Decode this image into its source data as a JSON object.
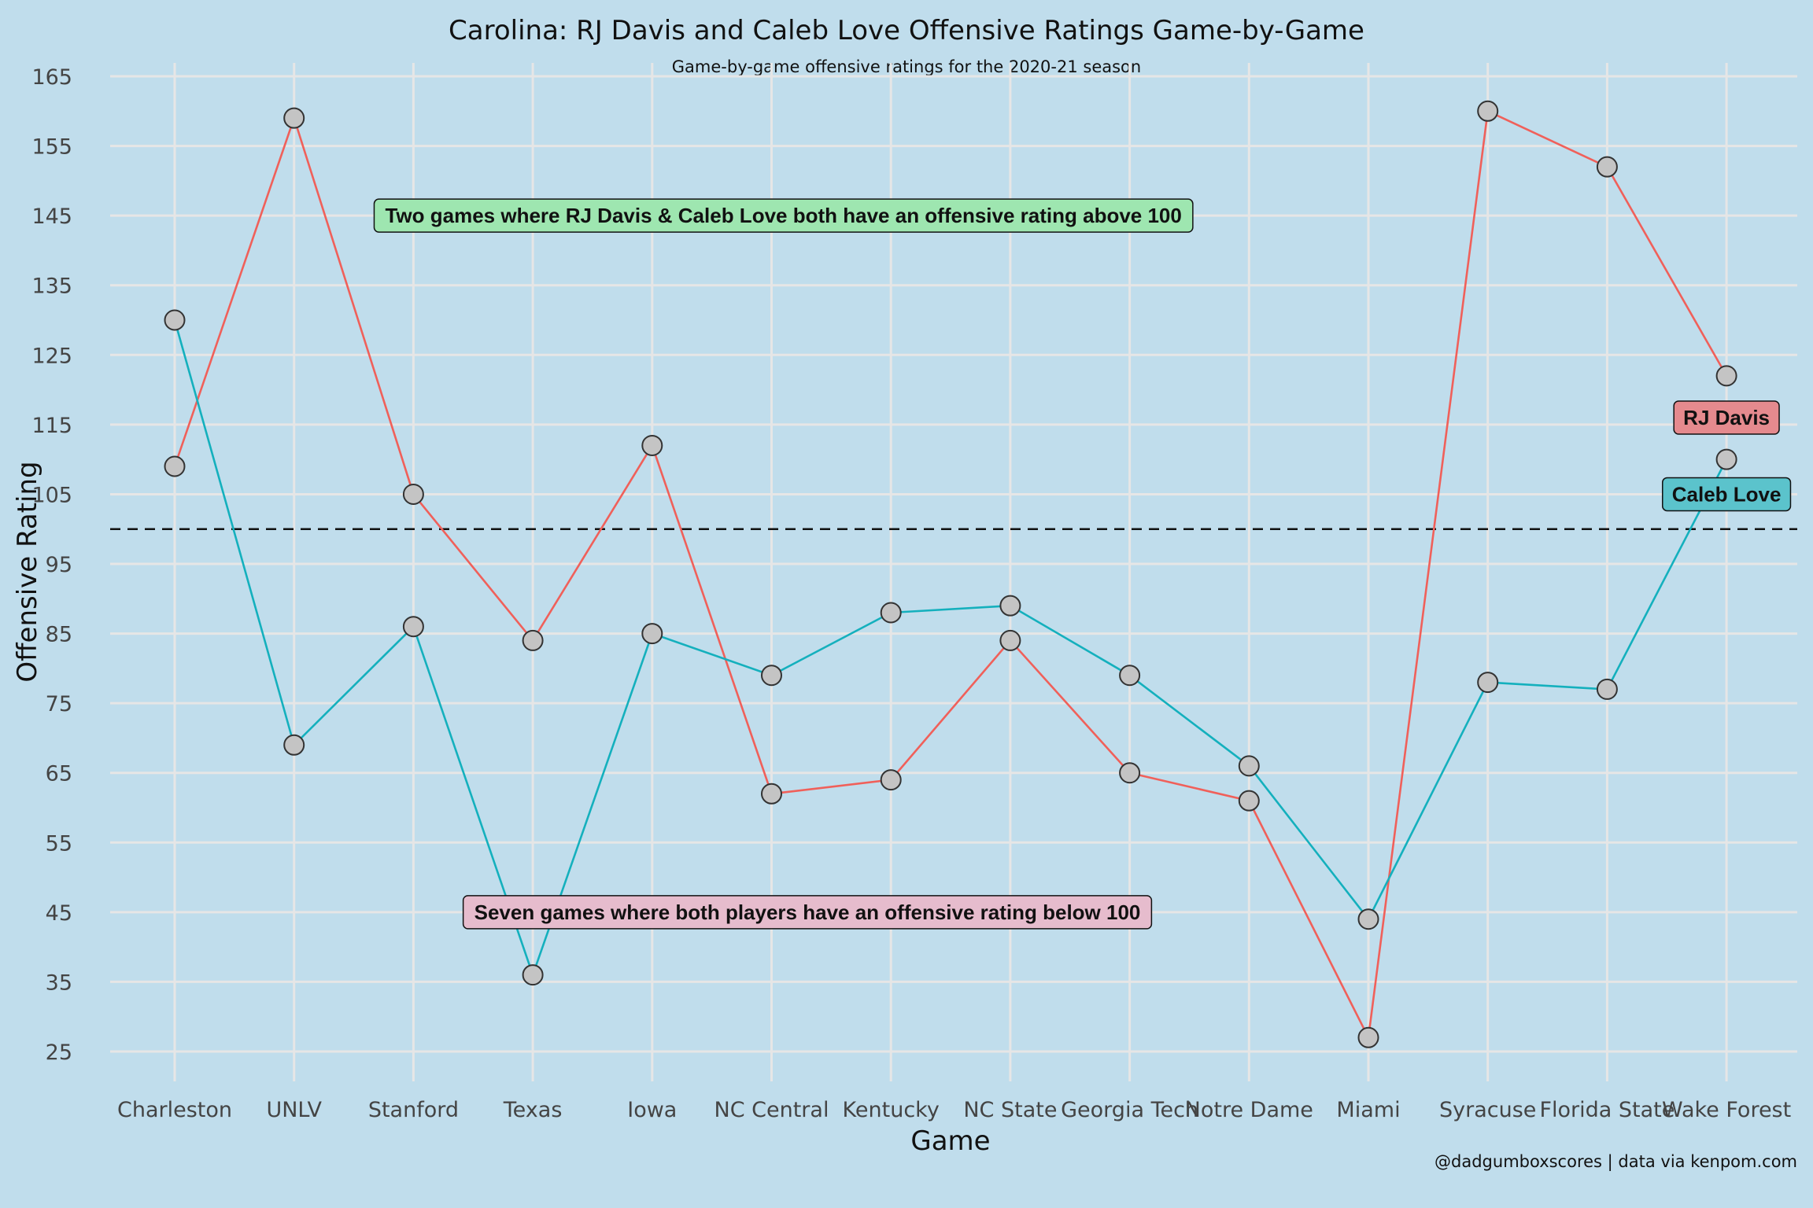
{
  "chart_data": {
    "type": "line",
    "title": "Carolina: RJ Davis and Caleb Love Offensive Ratings Game-by-Game",
    "subtitle": "Game-by-game offensive ratings for the 2020-21 season",
    "xlabel": "Game",
    "ylabel": "Offensive Rating",
    "caption": "@dadgumboxscores | data via kenpom.com",
    "categories": [
      "Charleston",
      "UNLV",
      "Stanford",
      "Texas",
      "Iowa",
      "NC Central",
      "Kentucky",
      "NC State",
      "Georgia Tech",
      "Notre Dame",
      "Miami",
      "Syracuse",
      "Florida State",
      "Wake Forest"
    ],
    "yticks": [
      25,
      35,
      45,
      55,
      65,
      75,
      85,
      95,
      105,
      115,
      125,
      135,
      145,
      155,
      165
    ],
    "ylim": [
      21,
      168
    ],
    "grid": true,
    "reference_line": {
      "y": 100,
      "style": "dashed"
    },
    "series": [
      {
        "name": "RJ Davis",
        "color": "#f0605a",
        "label_fill": "#e58a8e",
        "values": [
          109,
          159,
          105,
          84,
          112,
          62,
          64,
          84,
          65,
          61,
          27,
          160,
          152,
          122
        ]
      },
      {
        "name": "Caleb Love",
        "color": "#14b0bd",
        "label_fill": "#5bc3cc",
        "values": [
          130,
          69,
          86,
          36,
          85,
          79,
          88,
          89,
          79,
          66,
          44,
          78,
          77,
          110
        ]
      }
    ],
    "marker": {
      "fill": "#c4c4c4",
      "stroke": "#333333"
    },
    "annotations": [
      {
        "text": "Two games where RJ Davis & Caleb Love both have an offensive rating above 100",
        "x_center": 6.1,
        "y": 145,
        "fill": "#9ee6b0"
      },
      {
        "text": "Seven games where both players have an offensive rating below 100",
        "x_center": 6.3,
        "y": 45,
        "fill": "#e6bccd"
      }
    ],
    "series_labels": [
      {
        "series": "RJ Davis",
        "x": 14,
        "y": 116
      },
      {
        "series": "Caleb Love",
        "x": 14,
        "y": 105
      }
    ]
  }
}
